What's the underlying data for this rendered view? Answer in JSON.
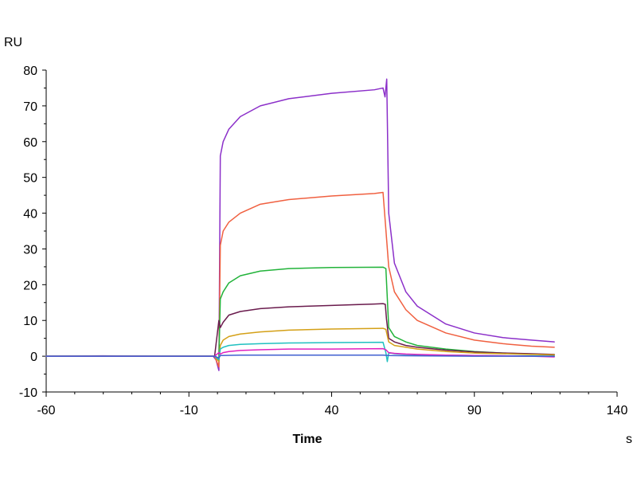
{
  "chart_data": {
    "type": "line",
    "title": "",
    "xlabel": "Time",
    "ylabel": "",
    "y_unit": "RU",
    "x_unit": "s",
    "xlim": [
      -60,
      140
    ],
    "ylim": [
      -10,
      80
    ],
    "x_ticks": [
      -60,
      -10,
      40,
      90,
      140
    ],
    "y_ticks": [
      -10,
      0,
      10,
      20,
      30,
      40,
      50,
      60,
      70,
      80
    ],
    "x_tick_labels": [
      "-60",
      "-10",
      "40",
      "90",
      "140"
    ],
    "y_tick_labels": [
      "-10",
      "0",
      "10",
      "20",
      "30",
      "40",
      "50",
      "60",
      "70",
      "80"
    ],
    "grid": false,
    "legend": "none",
    "series": [
      {
        "color": "#8b2fc9",
        "points": [
          [
            -60,
            0
          ],
          [
            -40,
            0.1
          ],
          [
            -20,
            0
          ],
          [
            -1.5,
            0
          ],
          [
            -0.5,
            -1
          ],
          [
            0.5,
            -4
          ],
          [
            1,
            56
          ],
          [
            2,
            60
          ],
          [
            4,
            63.5
          ],
          [
            8,
            67
          ],
          [
            15,
            70
          ],
          [
            25,
            72
          ],
          [
            40,
            73.5
          ],
          [
            55,
            74.5
          ],
          [
            58,
            75
          ],
          [
            58.7,
            72.5
          ],
          [
            59.3,
            77.5
          ],
          [
            60,
            40
          ],
          [
            62,
            26
          ],
          [
            66,
            18
          ],
          [
            70,
            14
          ],
          [
            80,
            9
          ],
          [
            90,
            6.5
          ],
          [
            100,
            5.2
          ],
          [
            110,
            4.5
          ],
          [
            118,
            4
          ]
        ]
      },
      {
        "color": "#f06040",
        "points": [
          [
            -60,
            0
          ],
          [
            -20,
            0
          ],
          [
            -1,
            0
          ],
          [
            0.5,
            -3
          ],
          [
            1,
            31
          ],
          [
            2,
            35
          ],
          [
            4,
            37.5
          ],
          [
            8,
            40
          ],
          [
            15,
            42.5
          ],
          [
            25,
            43.8
          ],
          [
            40,
            44.8
          ],
          [
            55,
            45.5
          ],
          [
            58,
            45.8
          ],
          [
            60,
            25
          ],
          [
            62,
            18
          ],
          [
            66,
            13
          ],
          [
            70,
            10
          ],
          [
            80,
            6.5
          ],
          [
            90,
            4.5
          ],
          [
            100,
            3.5
          ],
          [
            110,
            2.8
          ],
          [
            118,
            2.5
          ]
        ]
      },
      {
        "color": "#22b33a",
        "points": [
          [
            -60,
            0
          ],
          [
            -20,
            0
          ],
          [
            -1,
            0
          ],
          [
            0.5,
            -1
          ],
          [
            1,
            16
          ],
          [
            2,
            18
          ],
          [
            4,
            20.5
          ],
          [
            8,
            22.5
          ],
          [
            15,
            23.8
          ],
          [
            25,
            24.5
          ],
          [
            40,
            24.8
          ],
          [
            58,
            24.9
          ],
          [
            59,
            24.5
          ],
          [
            60,
            8
          ],
          [
            62,
            5.5
          ],
          [
            66,
            4
          ],
          [
            70,
            3
          ],
          [
            80,
            2
          ],
          [
            90,
            1.3
          ],
          [
            100,
            0.9
          ],
          [
            110,
            0.6
          ],
          [
            118,
            0.3
          ]
        ]
      },
      {
        "color": "#6a1b4d",
        "points": [
          [
            -60,
            0
          ],
          [
            -20,
            0
          ],
          [
            -1,
            0
          ],
          [
            0.5,
            10
          ],
          [
            1,
            8
          ],
          [
            2,
            9.5
          ],
          [
            4,
            11.5
          ],
          [
            8,
            12.5
          ],
          [
            15,
            13.3
          ],
          [
            25,
            13.8
          ],
          [
            40,
            14.2
          ],
          [
            55,
            14.6
          ],
          [
            58,
            14.7
          ],
          [
            58.8,
            14.5
          ],
          [
            59.2,
            10.5
          ],
          [
            60,
            5
          ],
          [
            62,
            4
          ],
          [
            66,
            3
          ],
          [
            70,
            2.5
          ],
          [
            80,
            1.7
          ],
          [
            90,
            1.2
          ],
          [
            100,
            0.9
          ],
          [
            110,
            0.7
          ],
          [
            118,
            0.5
          ]
        ]
      },
      {
        "color": "#d4a017",
        "points": [
          [
            -60,
            0
          ],
          [
            -20,
            0
          ],
          [
            -1,
            0
          ],
          [
            0.5,
            -1.5
          ],
          [
            1,
            3
          ],
          [
            2,
            4.5
          ],
          [
            4,
            5.5
          ],
          [
            8,
            6.2
          ],
          [
            15,
            6.8
          ],
          [
            25,
            7.3
          ],
          [
            40,
            7.6
          ],
          [
            58,
            7.8
          ],
          [
            59,
            7.5
          ],
          [
            60,
            4
          ],
          [
            62,
            3
          ],
          [
            66,
            2.5
          ],
          [
            70,
            2
          ],
          [
            80,
            1.3
          ],
          [
            90,
            0.9
          ],
          [
            100,
            0.7
          ],
          [
            110,
            0.5
          ],
          [
            118,
            0.4
          ]
        ]
      },
      {
        "color": "#20c0c0",
        "points": [
          [
            -60,
            0
          ],
          [
            -20,
            0
          ],
          [
            -1,
            0
          ],
          [
            0.5,
            -1
          ],
          [
            1,
            2
          ],
          [
            2,
            2.5
          ],
          [
            4,
            3
          ],
          [
            8,
            3.3
          ],
          [
            15,
            3.5
          ],
          [
            25,
            3.7
          ],
          [
            40,
            3.8
          ],
          [
            58,
            3.9
          ],
          [
            59,
            1
          ],
          [
            59.5,
            -1.5
          ],
          [
            60,
            1
          ],
          [
            62,
            0.7
          ],
          [
            66,
            0.5
          ],
          [
            70,
            0.4
          ],
          [
            80,
            0.3
          ],
          [
            90,
            0.2
          ],
          [
            100,
            0.1
          ],
          [
            110,
            0.1
          ],
          [
            118,
            0
          ]
        ]
      },
      {
        "color": "#e020c0",
        "points": [
          [
            -60,
            0
          ],
          [
            -20,
            0
          ],
          [
            -1,
            0
          ],
          [
            0.5,
            1
          ],
          [
            1,
            0.6
          ],
          [
            2,
            1
          ],
          [
            4,
            1.3
          ],
          [
            8,
            1.6
          ],
          [
            15,
            1.8
          ],
          [
            25,
            2
          ],
          [
            40,
            2
          ],
          [
            58,
            2.1
          ],
          [
            59,
            1.8
          ],
          [
            60,
            1
          ],
          [
            62,
            0.8
          ],
          [
            66,
            0.6
          ],
          [
            70,
            0.5
          ],
          [
            80,
            0.3
          ],
          [
            90,
            0.2
          ],
          [
            100,
            0.1
          ],
          [
            110,
            0
          ],
          [
            118,
            -0.2
          ]
        ]
      },
      {
        "color": "#4060d0",
        "points": [
          [
            -60,
            0
          ],
          [
            -20,
            0
          ],
          [
            -1,
            0
          ],
          [
            0.5,
            -0.5
          ],
          [
            1,
            0.2
          ],
          [
            8,
            0.3
          ],
          [
            40,
            0.3
          ],
          [
            58,
            0.3
          ],
          [
            60,
            0.2
          ],
          [
            70,
            0.1
          ],
          [
            90,
            0
          ],
          [
            118,
            0
          ]
        ]
      }
    ]
  }
}
